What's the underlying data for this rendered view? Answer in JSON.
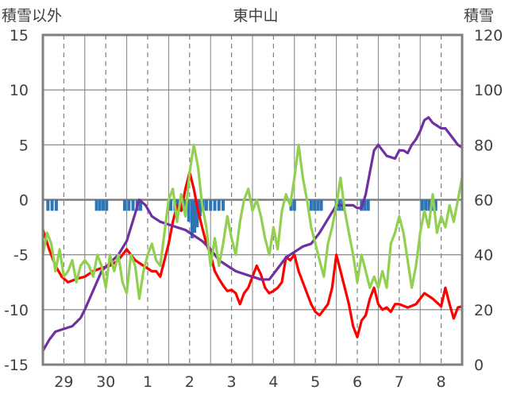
{
  "chart_data": {
    "type": "line",
    "title": "東中山",
    "ylabel_left": "積雪以外",
    "ylabel_right": "積雪",
    "y_left_range": [
      -15,
      15
    ],
    "y_left_ticks": [
      "15",
      "10",
      "5",
      "0",
      "-5",
      "-10",
      "-15"
    ],
    "y_right_range": [
      0,
      120
    ],
    "y_right_ticks": [
      "120",
      "100",
      "80",
      "60",
      "40",
      "20",
      "0"
    ],
    "x_range": [
      0,
      10
    ],
    "x_ticks": [
      {
        "label": "29",
        "pos": 0.5
      },
      {
        "label": "30",
        "pos": 1.5
      },
      {
        "label": "1",
        "pos": 2.5
      },
      {
        "label": "2",
        "pos": 3.5
      },
      {
        "label": "3",
        "pos": 4.5
      },
      {
        "label": "4",
        "pos": 5.5
      },
      {
        "label": "5",
        "pos": 6.5
      },
      {
        "label": "6",
        "pos": 7.5
      },
      {
        "label": "7",
        "pos": 8.5
      },
      {
        "label": "8",
        "pos": 9.5
      }
    ],
    "grid": {
      "horizontal": true,
      "vertical_dashed": true,
      "day_boundary_solid": true
    },
    "colors": {
      "red": "#ff0000",
      "purple": "#7030a0",
      "green": "#92d050",
      "bars": "#2e75b6",
      "frame": "#7f7f7f",
      "grid": "#7f7f7f",
      "zero": "#7f7f7f"
    },
    "series": [
      {
        "axis": "left",
        "color": "#ff0000",
        "x": [
          0.0,
          0.15,
          0.3,
          0.45,
          0.6,
          0.8,
          1.0,
          1.2,
          1.4,
          1.6,
          1.8,
          2.0,
          2.2,
          2.4,
          2.6,
          2.7,
          2.8,
          3.0,
          3.1,
          3.2,
          3.3,
          3.4,
          3.5,
          3.6,
          3.7,
          3.8,
          3.9,
          4.0,
          4.1,
          4.2,
          4.3,
          4.4,
          4.5,
          4.6,
          4.7,
          4.8,
          4.9,
          5.0,
          5.1,
          5.2,
          5.3,
          5.4,
          5.5,
          5.6,
          5.7,
          5.8,
          5.9,
          6.0,
          6.1,
          6.2,
          6.3,
          6.4,
          6.5,
          6.6,
          6.7,
          6.8,
          6.9,
          7.0,
          7.1,
          7.2,
          7.3,
          7.4,
          7.5,
          7.6,
          7.7,
          7.8,
          7.9,
          8.0,
          8.1,
          8.2,
          8.3,
          8.4,
          8.5,
          8.7,
          8.9,
          9.1,
          9.3,
          9.5,
          9.6,
          9.7,
          9.8,
          9.9,
          10.0
        ],
        "y": [
          -2.7,
          -4.5,
          -6.0,
          -7.0,
          -7.5,
          -7.2,
          -7.0,
          -6.5,
          -6.2,
          -6.0,
          -5.5,
          -4.5,
          -5.5,
          -6.0,
          -6.5,
          -6.5,
          -7.0,
          -4.0,
          -2.0,
          -0.5,
          -1.0,
          1.0,
          2.5,
          1.0,
          -1.0,
          -2.5,
          -4.0,
          -5.0,
          -6.5,
          -7.2,
          -7.8,
          -8.3,
          -8.2,
          -8.5,
          -9.5,
          -8.5,
          -8.0,
          -7.0,
          -6.0,
          -6.8,
          -8.0,
          -8.5,
          -8.3,
          -8.0,
          -7.5,
          -5.2,
          -5.5,
          -5.0,
          -6.5,
          -7.5,
          -8.5,
          -9.5,
          -10.2,
          -10.5,
          -10.0,
          -9.5,
          -8.0,
          -5.0,
          -6.5,
          -8.0,
          -9.5,
          -11.5,
          -12.5,
          -11.0,
          -10.5,
          -9.0,
          -8.0,
          -9.5,
          -10.0,
          -9.8,
          -10.2,
          -9.5,
          -9.5,
          -9.8,
          -9.5,
          -8.5,
          -9.0,
          -9.7,
          -8.0,
          -9.5,
          -10.8,
          -9.8,
          -9.7
        ]
      },
      {
        "axis": "right",
        "color": "#7030a0",
        "x": [
          0.0,
          0.15,
          0.3,
          0.5,
          0.7,
          0.9,
          1.0,
          1.2,
          1.4,
          1.6,
          1.8,
          2.0,
          2.1,
          2.2,
          2.3,
          2.45,
          2.6,
          2.8,
          3.0,
          3.2,
          3.4,
          3.6,
          3.8,
          4.0,
          4.2,
          4.4,
          4.6,
          4.8,
          5.0,
          5.2,
          5.4,
          5.6,
          5.8,
          6.0,
          6.2,
          6.4,
          6.6,
          6.8,
          7.0,
          7.2,
          7.4,
          7.5,
          7.6,
          7.7,
          7.8,
          7.9,
          8.0,
          8.2,
          8.4,
          8.5,
          8.6,
          8.7,
          8.8,
          8.9,
          9.0,
          9.1,
          9.2,
          9.3,
          9.4,
          9.5,
          9.6,
          9.7,
          9.8,
          9.9,
          10.0
        ],
        "y": [
          5,
          9,
          12,
          13,
          14,
          17,
          20,
          27,
          34,
          37,
          40,
          45,
          50,
          55,
          60,
          58,
          54,
          52,
          51,
          50,
          49,
          47,
          45,
          42,
          38,
          36,
          34,
          33,
          32,
          31,
          31,
          35,
          39,
          41,
          43,
          44,
          48,
          53,
          58,
          58,
          58,
          57,
          57,
          62,
          70,
          78,
          80,
          76,
          75,
          78,
          78,
          77,
          80,
          82,
          85,
          89,
          90,
          88,
          87,
          86,
          86,
          84,
          82,
          80,
          79
        ]
      },
      {
        "axis": "left",
        "color": "#92d050",
        "x": [
          0.0,
          0.1,
          0.2,
          0.3,
          0.4,
          0.5,
          0.6,
          0.7,
          0.8,
          0.9,
          1.0,
          1.1,
          1.2,
          1.3,
          1.4,
          1.5,
          1.6,
          1.7,
          1.8,
          1.9,
          2.0,
          2.1,
          2.2,
          2.3,
          2.4,
          2.5,
          2.6,
          2.7,
          2.8,
          2.9,
          3.0,
          3.1,
          3.2,
          3.3,
          3.4,
          3.5,
          3.6,
          3.7,
          3.8,
          3.9,
          4.0,
          4.1,
          4.2,
          4.3,
          4.4,
          4.5,
          4.6,
          4.7,
          4.8,
          4.9,
          5.0,
          5.1,
          5.2,
          5.3,
          5.4,
          5.5,
          5.6,
          5.7,
          5.8,
          5.9,
          6.0,
          6.1,
          6.2,
          6.3,
          6.4,
          6.5,
          6.6,
          6.7,
          6.8,
          6.9,
          7.0,
          7.1,
          7.2,
          7.3,
          7.4,
          7.5,
          7.6,
          7.7,
          7.8,
          7.9,
          8.0,
          8.1,
          8.2,
          8.3,
          8.4,
          8.5,
          8.6,
          8.7,
          8.8,
          8.9,
          9.0,
          9.1,
          9.2,
          9.3,
          9.4,
          9.5,
          9.6,
          9.7,
          9.8,
          9.9,
          10.0
        ],
        "y": [
          -5.0,
          -3.0,
          -4.0,
          -6.5,
          -4.5,
          -7.0,
          -6.5,
          -5.5,
          -7.5,
          -6.0,
          -5.5,
          -6.0,
          -7.0,
          -5.0,
          -6.0,
          -8.0,
          -5.0,
          -6.5,
          -5.0,
          -7.5,
          -8.5,
          -5.0,
          -6.0,
          -9.0,
          -6.5,
          -5.0,
          -4.0,
          -5.5,
          -6.0,
          -3.0,
          0.0,
          1.0,
          -2.0,
          0.5,
          -1.5,
          2.5,
          5.0,
          3.0,
          -0.5,
          -2.5,
          -6.0,
          -3.5,
          -6.0,
          -4.0,
          -1.5,
          -3.5,
          -5.0,
          -2.0,
          0.0,
          1.0,
          -1.0,
          0.0,
          -1.5,
          -3.5,
          -5.0,
          -2.5,
          -4.5,
          -1.0,
          0.5,
          -0.5,
          2.0,
          5.0,
          2.0,
          0.0,
          -2.5,
          -4.0,
          -5.5,
          -7.0,
          -4.0,
          -2.5,
          -0.5,
          2.0,
          -1.0,
          -3.0,
          -5.0,
          -7.5,
          -5.0,
          -6.5,
          -8.0,
          -7.0,
          -8.0,
          -6.5,
          -8.0,
          -4.0,
          -3.0,
          -1.5,
          -3.0,
          -5.5,
          -8.0,
          -6.0,
          -3.0,
          -1.0,
          -2.5,
          0.5,
          -3.0,
          -1.5,
          -2.5,
          -0.5,
          -2.0,
          0.0,
          2.0
        ]
      }
    ],
    "bars": {
      "axis": "left",
      "color": "#2e75b6",
      "x": [
        0.12,
        0.22,
        0.32,
        1.28,
        1.36,
        1.44,
        1.52,
        1.95,
        2.05,
        2.15,
        2.25,
        2.33,
        3.05,
        3.15,
        3.22,
        3.28,
        3.33,
        3.4,
        3.48,
        3.56,
        3.62,
        3.68,
        3.75,
        3.82,
        3.9,
        4.0,
        4.1,
        4.2,
        4.3,
        5.92,
        6.0,
        6.4,
        6.48,
        6.56,
        6.64,
        7.0,
        7.08,
        7.16,
        7.6,
        7.68,
        7.76,
        9.05,
        9.13,
        9.21,
        9.29,
        9.37
      ],
      "y": [
        -1.0,
        -1.0,
        -1.0,
        -1.0,
        -1.0,
        -1.0,
        -1.0,
        -1.0,
        -1.0,
        -1.0,
        -1.0,
        -1.0,
        -1.0,
        -1.0,
        -1.0,
        -1.0,
        -1.0,
        -1.0,
        -2.0,
        -3.5,
        -3.0,
        -2.5,
        -1.5,
        -1.0,
        -1.0,
        -1.0,
        -1.0,
        -1.0,
        -1.0,
        -1.0,
        -1.0,
        -1.0,
        -1.0,
        -1.0,
        -1.0,
        -1.0,
        -1.0,
        -1.0,
        -1.0,
        -1.0,
        -1.0,
        -1.0,
        -1.0,
        -1.0,
        -1.0,
        -1.0
      ]
    }
  }
}
